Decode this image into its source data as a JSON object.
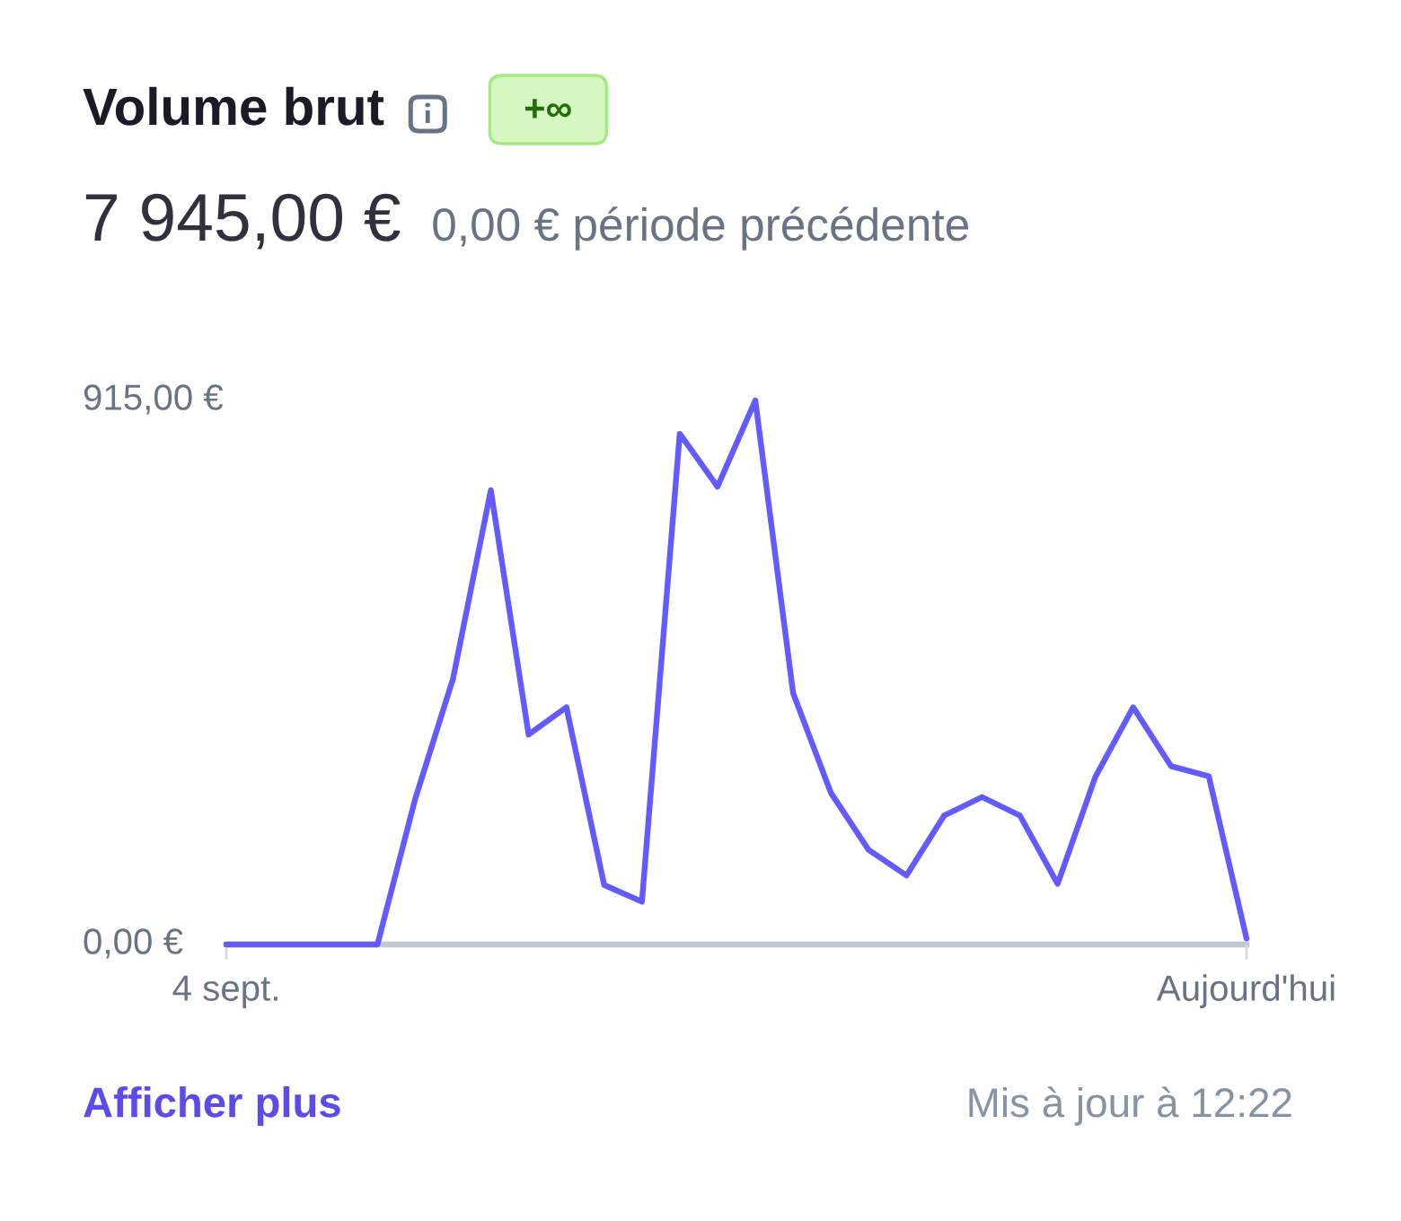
{
  "chart_data": {
    "type": "line",
    "title": "Volume brut",
    "subtitle": "7 945,00 €",
    "annotations": [
      "+∞",
      "0,00 € période précédente",
      "Afficher plus",
      "Mis à jour à 12:22"
    ],
    "categories": [
      "4 sept.",
      null,
      null,
      null,
      null,
      null,
      null,
      null,
      null,
      null,
      null,
      null,
      null,
      null,
      null,
      null,
      null,
      null,
      null,
      null,
      null,
      null,
      null,
      null,
      null,
      null,
      null,
      "Aujourd'hui"
    ],
    "series": [
      {
        "color": "#635bff",
        "values": [
          0,
          0,
          0,
          0,
          0,
          245,
          447,
          764,
          353,
          399,
          100,
          72,
          859,
          770,
          915,
          423,
          255,
          159,
          116,
          217,
          248,
          217,
          102,
          282,
          399,
          300,
          283,
          10
        ]
      }
    ],
    "ylim": [
      0,
      915
    ],
    "yticks": [
      {
        "value": 0,
        "label": "0,00 €"
      },
      {
        "value": 915,
        "label": "915,00 €"
      }
    ],
    "line_style": "solid"
  }
}
